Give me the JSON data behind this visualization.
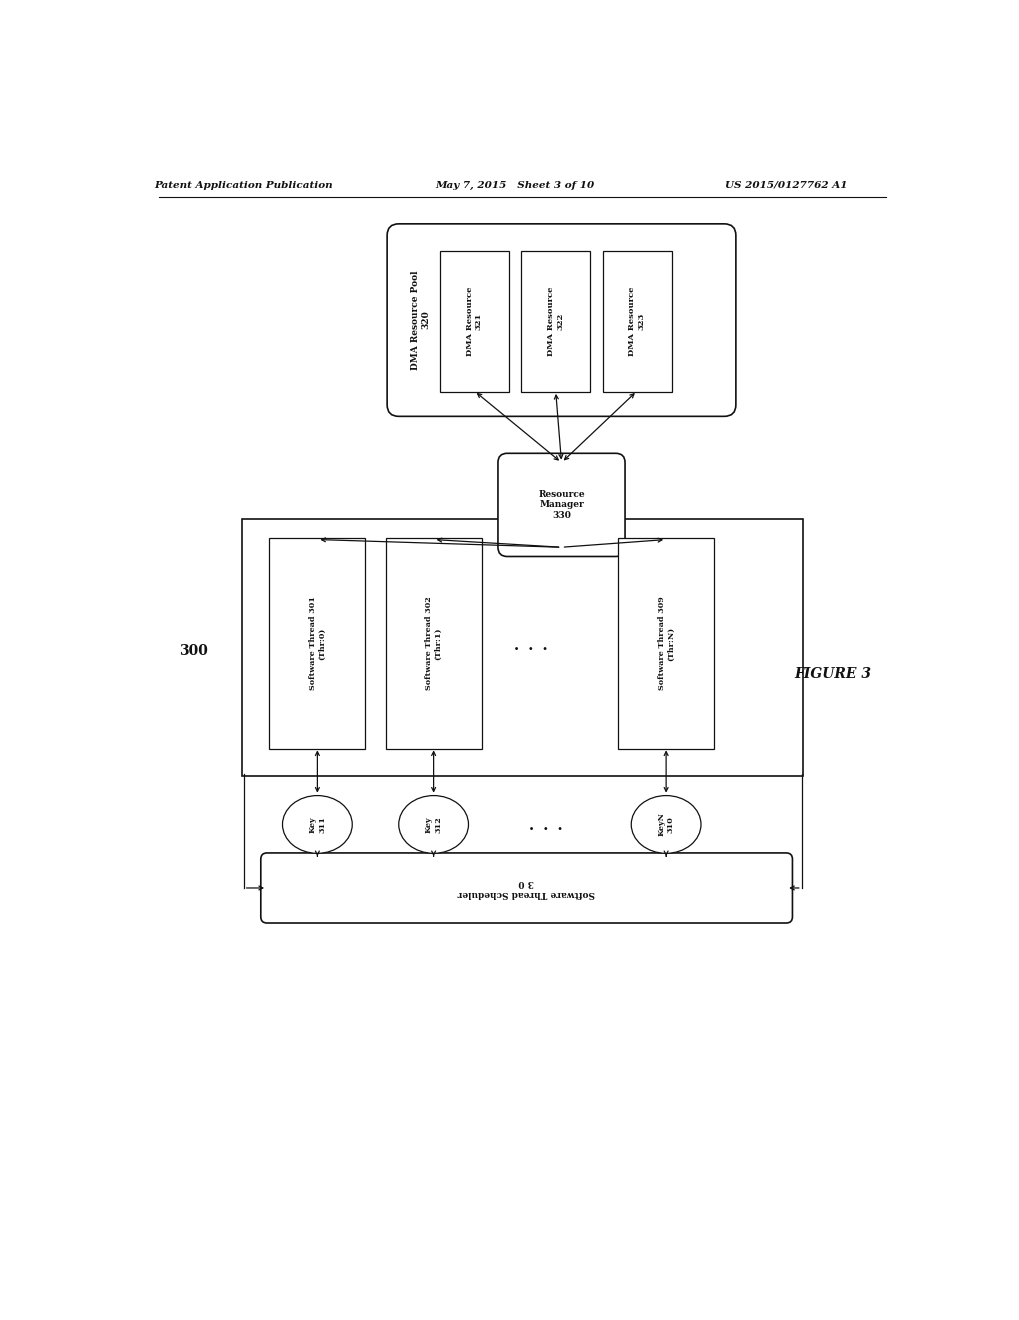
{
  "header_left": "Patent Application Publication",
  "header_mid": "May 7, 2015   Sheet 3 of 10",
  "header_right": "US 2015/0127762 A1",
  "figure_label": "FIGURE 3",
  "system_label": "300",
  "bg_color": "#ffffff",
  "text_color": "#1a1a1a"
}
